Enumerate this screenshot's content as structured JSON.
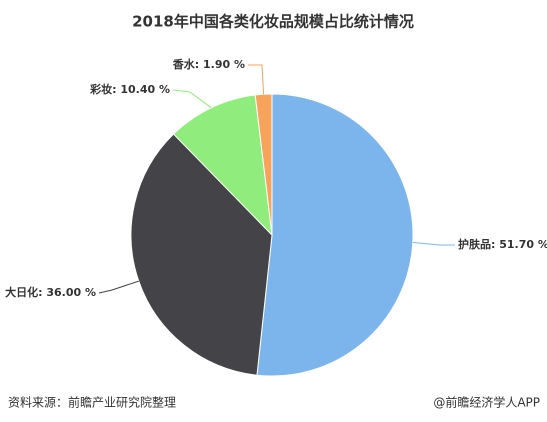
{
  "chart_data": {
    "type": "pie",
    "title": "2018年中国各类化妆品规模占比统计情况",
    "values": [
      51.7,
      36.0,
      10.4,
      1.9
    ],
    "value_labels": [
      "护肤品: 51.70 %",
      "大日化: 36.00 %",
      "彩妆: 10.40 %",
      "香水: 1.90 %"
    ],
    "colors": [
      "#7cb5ec",
      "#434348",
      "#90ed7d",
      "#f7a35c"
    ],
    "source": "资料来源：前瞻产业研究院整理",
    "credit": "@前瞻经济学人APP"
  }
}
